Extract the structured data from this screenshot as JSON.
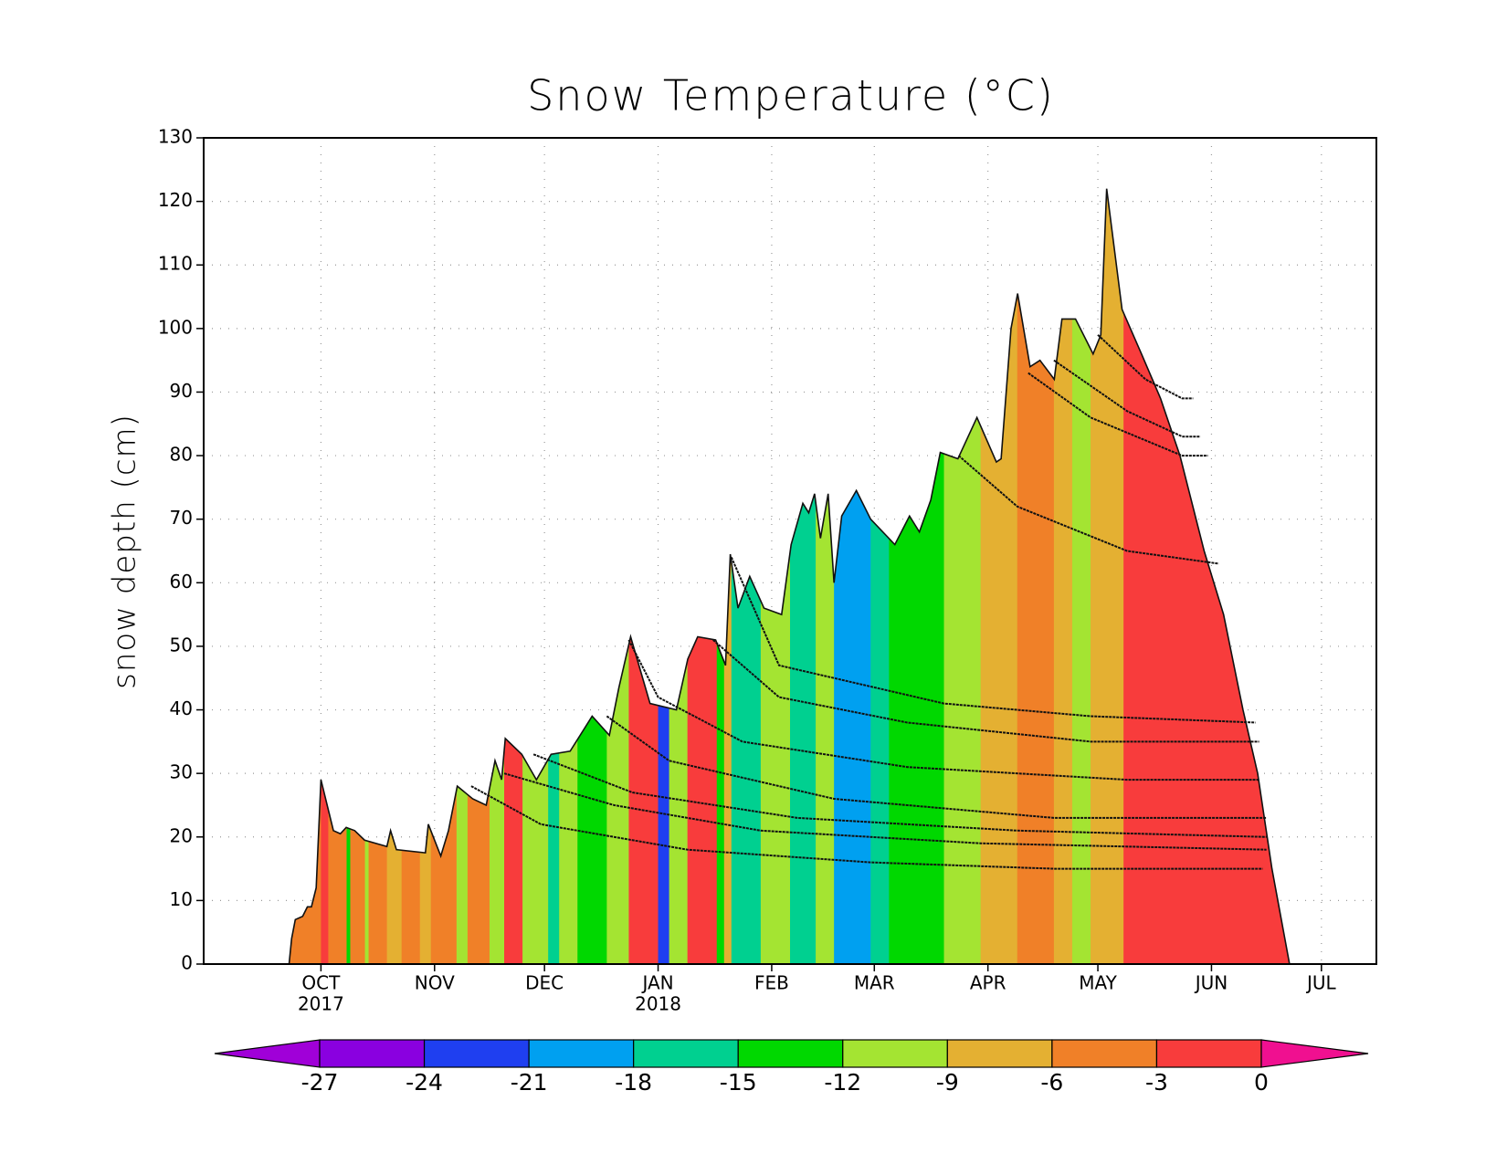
{
  "chart_data": {
    "type": "snow-profile",
    "title": "Snow Temperature (°C)",
    "y_label": "snow depth (cm)",
    "ylim": [
      0,
      130
    ],
    "yticks": [
      0,
      10,
      20,
      30,
      40,
      50,
      60,
      70,
      80,
      90,
      100,
      110,
      120,
      130
    ],
    "xlim": [
      -32,
      288
    ],
    "xticks": [
      {
        "value": 0,
        "label": "OCT"
      },
      {
        "value": 31,
        "label": "NOV"
      },
      {
        "value": 61,
        "label": "DEC"
      },
      {
        "value": 92,
        "label": "JAN"
      },
      {
        "value": 123,
        "label": "FEB"
      },
      {
        "value": 151,
        "label": "MAR"
      },
      {
        "value": 182,
        "label": "APR"
      },
      {
        "value": 212,
        "label": "MAY"
      },
      {
        "value": 243,
        "label": "JUN"
      },
      {
        "value": 273,
        "label": "JUL"
      }
    ],
    "year_labels": [
      {
        "value": 0,
        "label": "2017"
      },
      {
        "value": 92,
        "label": "2018"
      }
    ],
    "grid": true,
    "depth": {
      "x": [
        -8.7,
        -8,
        -7,
        -5,
        -3.7,
        -2.6,
        -1.3,
        0,
        3.4,
        5.3,
        6.9,
        9.2,
        11.9,
        18,
        19,
        20.6,
        28.5,
        29.3,
        32.7,
        34.8,
        37.2,
        41.4,
        45.1,
        47.5,
        49.3,
        50.3,
        54.8,
        58.8,
        62.8,
        68,
        74,
        78.7,
        81.3,
        84.5,
        89.8,
        97,
        100.1,
        102.8,
        107.7,
        110.4,
        111.7,
        113.8,
        117,
        120.9,
        125.7,
        128.3,
        131.5,
        133.1,
        134.7,
        136.3,
        138.4,
        140,
        142.1,
        146.1,
        150,
        156.6,
        160.6,
        163.3,
        166.4,
        169,
        173.8,
        179,
        184.3,
        185.6,
        188.3,
        190.1,
        193.5,
        196.2,
        200.1,
        202.2,
        205.9,
        210.7,
        212.8,
        214.4,
        218.6,
        223.9,
        229.1,
        234.4,
        241,
        246.3,
        251.6,
        255.6,
        259.5,
        264.3
      ],
      "values": [
        0,
        4,
        7,
        7.5,
        9,
        9,
        12,
        29,
        21,
        20.5,
        21.5,
        21,
        19.5,
        18.5,
        21,
        18,
        17.5,
        22,
        17,
        21,
        28,
        26,
        25,
        32,
        29,
        35.5,
        33,
        29,
        33,
        33.5,
        39,
        36,
        43.5,
        51.5,
        41,
        40,
        48,
        51.5,
        51,
        47,
        64.5,
        56,
        61,
        56,
        55,
        66,
        72.5,
        71,
        74,
        67,
        74,
        60,
        70.5,
        74.5,
        70,
        66,
        70.5,
        68,
        73,
        80.5,
        79.5,
        86,
        79,
        79.5,
        100,
        105.5,
        94,
        95,
        92,
        101.5,
        101.5,
        96,
        99,
        122,
        103,
        96,
        89,
        80,
        65,
        55,
        40,
        30,
        15,
        0
      ]
    },
    "stripes": {
      "edges": [
        -9,
        0,
        2,
        7,
        8,
        12,
        13,
        18,
        22,
        27,
        30,
        37,
        40,
        46,
        50,
        55,
        62,
        65,
        70,
        78,
        84,
        92,
        95,
        100,
        108,
        110,
        112,
        120,
        128,
        135,
        140,
        150,
        155,
        162,
        170,
        180,
        190,
        200,
        205,
        210,
        219,
        265
      ],
      "values": [
        -4.5,
        -1.5,
        -4.5,
        -13.5,
        -4.5,
        -10.5,
        -4.5,
        -7.5,
        -4.5,
        -7.5,
        -4.5,
        -10.5,
        -4.5,
        -10.5,
        -1.5,
        -10.5,
        -16.5,
        -10.5,
        -13.5,
        -10.5,
        -1.5,
        -22.5,
        -10.5,
        -1.5,
        -13.5,
        -7.5,
        -16.5,
        -10.5,
        -16.5,
        -10.5,
        -19.5,
        -16.5,
        -13.5,
        -13.5,
        -10.5,
        -7.5,
        -4.5,
        -7.5,
        -10.5,
        -7.5,
        -1.5
      ]
    },
    "layers": [
      {
        "x": [
          41,
          60,
          100,
          150,
          200,
          257
        ],
        "values": [
          28,
          22,
          18,
          16,
          15,
          15
        ]
      },
      {
        "x": [
          50,
          80,
          120,
          180,
          258
        ],
        "values": [
          30,
          25,
          21,
          19,
          18
        ]
      },
      {
        "x": [
          58,
          85,
          130,
          190,
          258
        ],
        "values": [
          33,
          27,
          23,
          21,
          20
        ]
      },
      {
        "x": [
          78,
          95,
          140,
          200,
          258
        ],
        "values": [
          39,
          32,
          26,
          23,
          23
        ]
      },
      {
        "x": [
          84,
          92,
          115,
          160,
          220,
          256
        ],
        "values": [
          51,
          42,
          35,
          31,
          29,
          29
        ]
      },
      {
        "x": [
          107,
          125,
          160,
          210,
          256
        ],
        "values": [
          51,
          42,
          38,
          35,
          35
        ]
      },
      {
        "x": [
          112,
          125,
          170,
          210,
          255
        ],
        "values": [
          64,
          47,
          41,
          39,
          38
        ]
      },
      {
        "x": [
          174,
          190,
          220,
          245
        ],
        "values": [
          80,
          72,
          65,
          63
        ]
      },
      {
        "x": [
          193,
          210,
          235,
          242
        ],
        "values": [
          93,
          86,
          80,
          80
        ]
      },
      {
        "x": [
          200,
          220,
          235,
          240
        ],
        "values": [
          95,
          87,
          83,
          83
        ]
      },
      {
        "x": [
          212,
          225,
          235,
          238
        ],
        "values": [
          99,
          92,
          89,
          89
        ]
      }
    ],
    "colorbar": {
      "levels": [
        -27,
        -24,
        -21,
        -18,
        -15,
        -12,
        -9,
        -6,
        -3,
        0
      ],
      "colors": [
        "#a000d8",
        "#8a00e0",
        "#1f3ff0",
        "#00a0f0",
        "#00d090",
        "#00d800",
        "#a4e432",
        "#e4b032",
        "#f08028",
        "#f83c3c",
        "#f01090"
      ]
    }
  }
}
